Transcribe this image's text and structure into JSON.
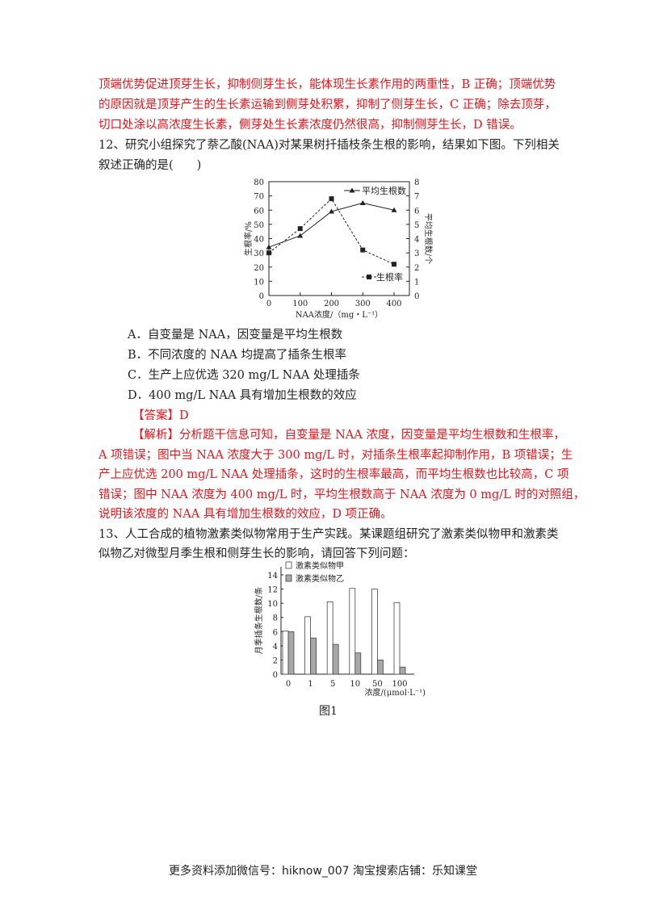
{
  "text": {
    "lines": [
      "顶端优势促进顶芽生长，抑制侧芽生长，能体现生长素作用的两重性，B 正确；顶端优势",
      "的原因就是顶芽产生的生长素运输到侧芽处积累，抑制了侧芽生长，C 正确；除去顶芽，",
      "切口处涂以高浓度生长素，侧芽处生长素浓度仍然很高，抑制侧芽生长，D 错误。",
      "12、研究小组探究了萘乙酸(NAA)对某果树扦插枝条生根的影响，结果如下图。下列相关",
      "叙述正确的是(　　)"
    ],
    "options": [
      "A．自变量是 NAA，因变量是平均生根数",
      "B．不同浓度的 NAA 均提高了插条生根率",
      "C．生产上应优选 320 mg/L NAA 处理插条",
      "D．400 mg/L NAA 具有增加生根数的效应"
    ],
    "answer": "【答案】D",
    "analysis": [
      "【解析】分析题干信息可知，自变量是 NAA 浓度，因变量是平均生根数和生根率，",
      "A 项错误；图中当 NAA 浓度大于 300 mg/L 时，对插条生根率起抑制作用，B 项错误；生",
      "产上应优选 200 mg/L NAA 处理插条，这时的生根率最高，而平均生根数也比较高，C 项",
      "错误；图中 NAA 浓度为 400 mg/L 时，平均生根数高于 NAA 浓度为 0 mg/L 时的对照组，",
      "说明该浓度的 NAA 具有增加生根数的效应，D 项正确。"
    ],
    "q13": [
      "13、人工合成的植物激素类似物常用于生产实践。某课题组研究了激素类似物甲和激素类",
      "似物乙对微型月季生根和侧芽生长的影响，请回答下列问题："
    ],
    "figure_caption": "图1",
    "footer": "更多资料添加微信号：hiknow_007  淘宝搜索店铺：乐知课堂",
    "red_color": "#e8141b"
  },
  "chart_data": [
    {
      "type": "line",
      "x": [
        0,
        100,
        200,
        300,
        400
      ],
      "xlabel": "NAA浓度/（mg・L⁻¹）",
      "ylabel_left": "生根率/%",
      "ylabel_right": "平均生根数/个",
      "ylim_left": [
        0,
        80
      ],
      "ylim_right": [
        0,
        8
      ],
      "yticks_left": [
        "0",
        "10",
        "20",
        "30",
        "40",
        "50",
        "60",
        "70",
        "80"
      ],
      "yticks_right": [
        "0",
        "1",
        "2",
        "3",
        "4",
        "5",
        "6",
        "7",
        "8"
      ],
      "xticks": [
        "0",
        "100",
        "200",
        "300",
        "400"
      ],
      "series": [
        {
          "name": "平均生根数",
          "axis": "right",
          "marker": "triangle",
          "style": "solid",
          "values": [
            3.4,
            4.2,
            5.9,
            6.5,
            6.0
          ]
        },
        {
          "name": "生根率",
          "axis": "left",
          "marker": "square",
          "style": "dashed",
          "values": [
            30,
            47,
            68,
            32,
            22
          ]
        }
      ],
      "grid": false
    },
    {
      "type": "bar",
      "categories": [
        "0",
        "1",
        "5",
        "10",
        "50",
        "100"
      ],
      "xlabel": "浓度/(μmol·L⁻¹)",
      "ylabel": "月季插条生根数/条",
      "ylim": [
        0,
        14
      ],
      "yticks": [
        "0",
        "2",
        "4",
        "6",
        "8",
        "10",
        "12",
        "14"
      ],
      "series": [
        {
          "name": "激素类似物甲",
          "color": "#ffffff",
          "values": [
            6.1,
            8.1,
            10.2,
            12.1,
            12.0,
            10.1
          ]
        },
        {
          "name": "激素类似物乙",
          "color": "#a8a8a8",
          "values": [
            6.0,
            5.1,
            4.2,
            3.0,
            2.0,
            1.0
          ]
        }
      ],
      "legend": "top-left",
      "grid": false
    }
  ]
}
